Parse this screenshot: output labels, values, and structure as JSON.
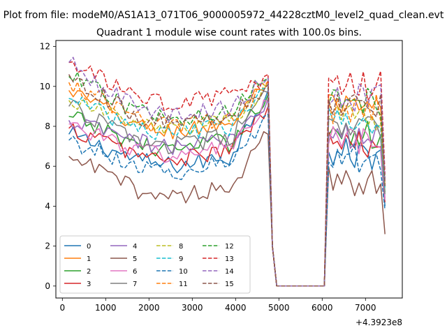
{
  "figure": {
    "suptitle": "Plot from file: modeM0/AS1A13_071T06_9000005972_44228cztM0_level2_quad_clean.evt"
  },
  "chart_data": {
    "type": "line",
    "title": "Quadrant 1 module wise count rates with 100.0s bins.",
    "xlabel": "",
    "ylabel": "",
    "x_offset_label": "+4.3923e8",
    "xlim": [
      -150,
      7850
    ],
    "ylim": [
      -0.6,
      12.3
    ],
    "x_ticks": [
      0,
      1000,
      2000,
      3000,
      4000,
      5000,
      6000,
      7000
    ],
    "x_tick_labels": [
      "0",
      "1000",
      "2000",
      "3000",
      "4000",
      "5000",
      "6000",
      "7000"
    ],
    "y_ticks": [
      0,
      2,
      4,
      6,
      8,
      10,
      12
    ],
    "y_tick_labels": [
      "0",
      "2",
      "4",
      "6",
      "8",
      "10",
      "12"
    ],
    "grid": false,
    "legend_position": "lower-left",
    "legend_columns": 4,
    "time_segments": [
      {
        "start": 150,
        "end": 4750,
        "step": 100
      },
      {
        "start": 6150,
        "end": 7450,
        "step": 100
      }
    ],
    "gap_x": [
      4850,
      4950,
      5050,
      6050
    ],
    "gap_y": [
      2.0,
      0.0,
      0.0,
      0.0
    ],
    "end_x": 7450,
    "series": [
      {
        "name": "0",
        "color": "#1f77b4",
        "dashed": false,
        "base": 6.3,
        "start": 7.6,
        "edge": 9.8,
        "end_value": 4.0,
        "seg2_base": 6.6
      },
      {
        "name": "1",
        "color": "#ff7f0e",
        "dashed": false,
        "base": 8.0,
        "start": 9.8,
        "edge": 10.3,
        "end_value": 5.0,
        "seg2_base": 8.8
      },
      {
        "name": "2",
        "color": "#2ca02c",
        "dashed": false,
        "base": 7.1,
        "start": 8.5,
        "edge": 9.6,
        "end_value": 4.7,
        "seg2_base": 7.5
      },
      {
        "name": "3",
        "color": "#d62728",
        "dashed": false,
        "base": 6.6,
        "start": 7.9,
        "edge": 9.0,
        "end_value": 4.2,
        "seg2_base": 7.0
      },
      {
        "name": "4",
        "color": "#9467bd",
        "dashed": false,
        "base": 7.2,
        "start": 8.3,
        "edge": 9.4,
        "end_value": 4.4,
        "seg2_base": 7.6
      },
      {
        "name": "5",
        "color": "#8c564b",
        "dashed": false,
        "base": 4.8,
        "start": 6.5,
        "edge": 7.6,
        "end_value": 2.6,
        "seg2_base": 5.3
      },
      {
        "name": "6",
        "color": "#e377c2",
        "dashed": false,
        "base": 6.8,
        "start": 8.1,
        "edge": 9.2,
        "end_value": 4.3,
        "seg2_base": 7.2
      },
      {
        "name": "7",
        "color": "#7f7f7f",
        "dashed": false,
        "base": 7.3,
        "start": 9.0,
        "edge": 9.7,
        "end_value": 4.6,
        "seg2_base": 7.8
      },
      {
        "name": "8",
        "color": "#bcbd22",
        "dashed": true,
        "base": 8.1,
        "start": 9.3,
        "edge": 10.0,
        "end_value": 5.1,
        "seg2_base": 8.6
      },
      {
        "name": "9",
        "color": "#17becf",
        "dashed": true,
        "base": 7.9,
        "start": 9.4,
        "edge": 9.9,
        "end_value": 4.9,
        "seg2_base": 8.4
      },
      {
        "name": "10",
        "color": "#1f77b4",
        "dashed": true,
        "base": 6.0,
        "start": 7.3,
        "edge": 8.6,
        "end_value": 3.8,
        "seg2_base": 6.4
      },
      {
        "name": "11",
        "color": "#ff7f0e",
        "dashed": true,
        "base": 8.3,
        "start": 10.2,
        "edge": 10.2,
        "end_value": 5.2,
        "seg2_base": 8.9
      },
      {
        "name": "12",
        "color": "#2ca02c",
        "dashed": true,
        "base": 8.7,
        "start": 10.5,
        "edge": 10.4,
        "end_value": 5.4,
        "seg2_base": 9.3
      },
      {
        "name": "13",
        "color": "#d62728",
        "dashed": true,
        "base": 9.4,
        "start": 11.2,
        "edge": 10.6,
        "end_value": 5.6,
        "seg2_base": 10.0
      },
      {
        "name": "14",
        "color": "#9467bd",
        "dashed": true,
        "base": 8.8,
        "start": 11.2,
        "edge": 10.4,
        "end_value": 5.3,
        "seg2_base": 9.4
      },
      {
        "name": "15",
        "color": "#8c564b",
        "dashed": true,
        "base": 8.4,
        "start": 10.6,
        "edge": 10.1,
        "end_value": 5.0,
        "seg2_base": 9.0
      }
    ]
  }
}
